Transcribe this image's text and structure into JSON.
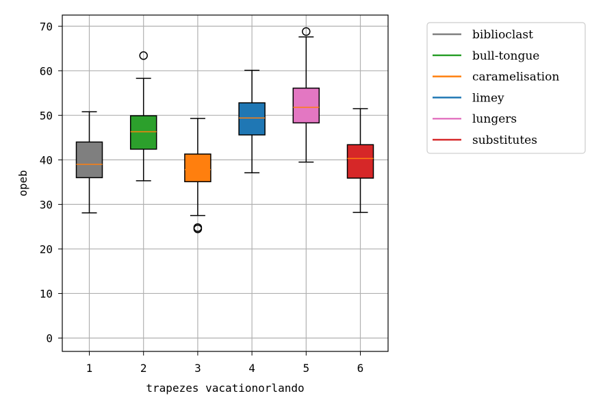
{
  "chart_data": {
    "type": "box",
    "xlabel": "trapezes vacationorlando",
    "ylabel": "opeb",
    "ylim": [
      -3,
      72.5
    ],
    "yticks": [
      0,
      10,
      20,
      30,
      40,
      50,
      60,
      70
    ],
    "grid": true,
    "legend_position": "outside-top-right",
    "categories": [
      "1",
      "2",
      "3",
      "4",
      "5",
      "6"
    ],
    "series": [
      {
        "name": "biblioclast",
        "color": "#7f7f7f",
        "whisker_low": 28.1,
        "q1": 36.0,
        "median": 39.0,
        "q3": 44.0,
        "whisker_high": 50.8,
        "outliers": []
      },
      {
        "name": "bull-tongue",
        "color": "#2ca02c",
        "whisker_low": 35.3,
        "q1": 42.4,
        "median": 46.3,
        "q3": 49.9,
        "whisker_high": 58.3,
        "outliers": [
          63.4
        ]
      },
      {
        "name": "caramelisation",
        "color": "#ff7f0e",
        "whisker_low": 27.5,
        "q1": 35.1,
        "median": 37.8,
        "q3": 41.3,
        "whisker_high": 49.3,
        "outliers": [
          24.8,
          24.5
        ]
      },
      {
        "name": "limey",
        "color": "#1f77b4",
        "whisker_low": 37.1,
        "q1": 45.6,
        "median": 49.4,
        "q3": 52.8,
        "whisker_high": 60.1,
        "outliers": []
      },
      {
        "name": "lungers",
        "color": "#e377c2",
        "whisker_low": 39.5,
        "q1": 48.3,
        "median": 51.8,
        "q3": 56.1,
        "whisker_high": 67.6,
        "outliers": [
          68.8
        ]
      },
      {
        "name": "substitutes",
        "color": "#d62728",
        "whisker_low": 28.2,
        "q1": 35.9,
        "median": 40.3,
        "q3": 43.4,
        "whisker_high": 51.5,
        "outliers": []
      }
    ],
    "median_color": "#ff7f0e"
  }
}
